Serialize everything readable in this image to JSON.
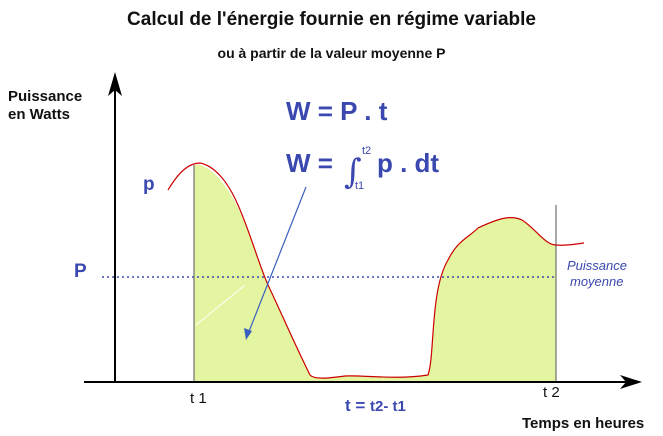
{
  "title": "Calcul de l'énergie fournie en régime variable",
  "subtitle": "ou à partir de la valeur moyenne P",
  "axis": {
    "y_label_line1": "Puissance",
    "y_label_line2": "en Watts",
    "x_label": "Temps en heures"
  },
  "formulas": {
    "f1": "W = P . t",
    "f2_lhs": "W =",
    "f2_upper_limit": "t2",
    "f2_lower_limit": "t1",
    "f2_rhs": "p . dt"
  },
  "labels": {
    "p_curve": "p",
    "P_mean": "P",
    "mean_line1": "Puissance",
    "mean_line2": "moyenne",
    "t1": "t 1",
    "t2": "t 2",
    "duration_prefix": "t =",
    "duration_expr": "t2- t1"
  },
  "colors": {
    "text_blue": "#3a48b0",
    "curve_red": "#cc0000",
    "area_fill": "#e3f5a1",
    "arrow_blue": "#3a5fc0",
    "axis": "#000000"
  }
}
